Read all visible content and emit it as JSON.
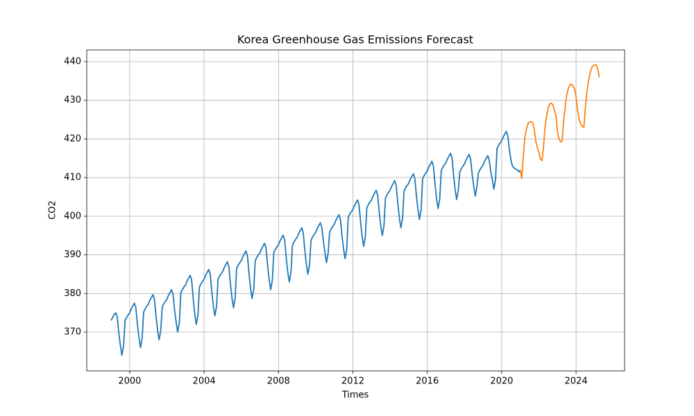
{
  "chart_data": {
    "type": "line",
    "title": "Korea Greenhouse Gas Emissions Forecast",
    "x_label": "Times",
    "y_label": "CO2",
    "xlim": [
      1997.69,
      2026.61
    ],
    "ylim": [
      359.95,
      443.05
    ],
    "xticks": [
      2000,
      2004,
      2008,
      2012,
      2016,
      2020,
      2024
    ],
    "yticks": [
      370,
      380,
      390,
      400,
      410,
      420,
      430,
      440
    ],
    "grid": true,
    "series": [
      {
        "color": "#1f77b4",
        "x": [
          1999,
          1999.08,
          1999.17,
          1999.25,
          1999.33,
          1999.42,
          1999.5,
          1999.58,
          1999.67,
          1999.75,
          1999.83,
          1999.92,
          2000,
          2000.08,
          2000.17,
          2000.25,
          2000.33,
          2000.42,
          2000.5,
          2000.58,
          2000.67,
          2000.75,
          2000.83,
          2000.92,
          2001,
          2001.08,
          2001.17,
          2001.25,
          2001.33,
          2001.42,
          2001.5,
          2001.58,
          2001.67,
          2001.75,
          2001.83,
          2001.92,
          2002,
          2002.08,
          2002.17,
          2002.25,
          2002.33,
          2002.42,
          2002.5,
          2002.58,
          2002.67,
          2002.75,
          2002.83,
          2002.92,
          2003,
          2003.08,
          2003.17,
          2003.25,
          2003.33,
          2003.42,
          2003.5,
          2003.58,
          2003.67,
          2003.75,
          2003.83,
          2003.92,
          2004,
          2004.08,
          2004.17,
          2004.25,
          2004.33,
          2004.42,
          2004.5,
          2004.58,
          2004.67,
          2004.75,
          2004.83,
          2004.92,
          2005,
          2005.08,
          2005.17,
          2005.25,
          2005.33,
          2005.42,
          2005.5,
          2005.58,
          2005.67,
          2005.75,
          2005.83,
          2005.92,
          2006,
          2006.08,
          2006.17,
          2006.25,
          2006.33,
          2006.42,
          2006.5,
          2006.58,
          2006.67,
          2006.75,
          2006.83,
          2006.92,
          2007,
          2007.08,
          2007.17,
          2007.25,
          2007.33,
          2007.42,
          2007.5,
          2007.58,
          2007.67,
          2007.75,
          2007.83,
          2007.92,
          2008,
          2008.08,
          2008.17,
          2008.25,
          2008.33,
          2008.42,
          2008.5,
          2008.58,
          2008.67,
          2008.75,
          2008.83,
          2008.92,
          2009,
          2009.08,
          2009.17,
          2009.25,
          2009.33,
          2009.42,
          2009.5,
          2009.58,
          2009.67,
          2009.75,
          2009.83,
          2009.92,
          2010,
          2010.08,
          2010.17,
          2010.25,
          2010.33,
          2010.42,
          2010.5,
          2010.58,
          2010.67,
          2010.75,
          2010.83,
          2010.92,
          2011,
          2011.08,
          2011.17,
          2011.25,
          2011.33,
          2011.42,
          2011.5,
          2011.58,
          2011.67,
          2011.75,
          2011.83,
          2011.92,
          2012,
          2012.08,
          2012.17,
          2012.25,
          2012.33,
          2012.42,
          2012.5,
          2012.58,
          2012.67,
          2012.75,
          2012.83,
          2012.92,
          2013,
          2013.08,
          2013.17,
          2013.25,
          2013.33,
          2013.42,
          2013.5,
          2013.58,
          2013.67,
          2013.75,
          2013.83,
          2013.92,
          2014,
          2014.08,
          2014.17,
          2014.25,
          2014.33,
          2014.42,
          2014.5,
          2014.58,
          2014.67,
          2014.75,
          2014.83,
          2014.92,
          2015,
          2015.08,
          2015.17,
          2015.25,
          2015.33,
          2015.42,
          2015.5,
          2015.58,
          2015.67,
          2015.75,
          2015.83,
          2015.92,
          2016,
          2016.08,
          2016.17,
          2016.25,
          2016.33,
          2016.42,
          2016.5,
          2016.58,
          2016.67,
          2016.75,
          2016.83,
          2016.92,
          2017,
          2017.08,
          2017.17,
          2017.25,
          2017.33,
          2017.42,
          2017.5,
          2017.58,
          2017.67,
          2017.75,
          2017.83,
          2017.92,
          2018,
          2018.08,
          2018.17,
          2018.25,
          2018.33,
          2018.42,
          2018.5,
          2018.58,
          2018.67,
          2018.75,
          2018.83,
          2018.92,
          2019,
          2019.08,
          2019.17,
          2019.25,
          2019.33,
          2019.42,
          2019.5,
          2019.58,
          2019.67,
          2019.75,
          2019.83,
          2019.92,
          2020,
          2020.08,
          2020.17,
          2020.25,
          2020.33,
          2020.42,
          2020.5,
          2020.58,
          2020.67,
          2020.75,
          2020.83,
          2020.92,
          2021
        ],
        "values": [
          373,
          373.8,
          374.6,
          375,
          373.8,
          369.5,
          366.5,
          364,
          366.5,
          373,
          373.8,
          374.5,
          375,
          376,
          376.8,
          377.5,
          376.3,
          371.8,
          368.5,
          366,
          368.5,
          375.2,
          376,
          376.7,
          377.2,
          378.2,
          379,
          379.7,
          378.5,
          373.9,
          370.5,
          368,
          370.5,
          376.5,
          377.3,
          378,
          378.5,
          379.5,
          380.3,
          381,
          379.8,
          375.5,
          372.5,
          370,
          372.5,
          380.2,
          381,
          381.7,
          382.2,
          383.2,
          384,
          384.7,
          383.5,
          378.4,
          374.5,
          372,
          374.5,
          381.7,
          382.5,
          383.2,
          383.7,
          384.7,
          385.5,
          386.2,
          385,
          380.2,
          376.7,
          374.2,
          376.7,
          383.7,
          384.5,
          385.2,
          385.7,
          386.7,
          387.5,
          388.2,
          387,
          382.3,
          378.8,
          376.3,
          378.8,
          386.5,
          387.3,
          388,
          388.5,
          389.5,
          390.3,
          391,
          389.8,
          384.9,
          381.2,
          378.7,
          381.2,
          388.5,
          389.3,
          390,
          390.5,
          391.5,
          392.3,
          393,
          391.8,
          387,
          383.5,
          381,
          383.5,
          390.6,
          391.4,
          392.1,
          392.6,
          393.6,
          394.4,
          395.1,
          393.9,
          389.1,
          385.5,
          383,
          385.5,
          392.5,
          393.3,
          394,
          394.5,
          395.5,
          396.3,
          397,
          395.8,
          391,
          387.5,
          385,
          387.5,
          393.8,
          394.6,
          395.3,
          395.8,
          396.8,
          397.6,
          398.3,
          397.1,
          393.2,
          390.5,
          388,
          390.5,
          395.9,
          396.7,
          397.4,
          397.9,
          398.9,
          399.7,
          400.4,
          399.2,
          394.7,
          391.5,
          389,
          391.5,
          399.7,
          400.5,
          401.2,
          401.7,
          402.7,
          403.5,
          404.2,
          403,
          398.2,
          394.7,
          392.2,
          394.7,
          402.2,
          403,
          403.7,
          404.2,
          405.2,
          406,
          406.7,
          405.5,
          400.9,
          397.5,
          395,
          397.5,
          404.7,
          405.5,
          406.2,
          406.7,
          407.7,
          408.5,
          409.2,
          408,
          403.1,
          399.5,
          397,
          399.5,
          406.5,
          407.3,
          408,
          408.5,
          409.5,
          410.3,
          411,
          409.8,
          405.1,
          401.7,
          399.2,
          401.7,
          409.7,
          410.5,
          411.2,
          411.7,
          412.7,
          413.5,
          414.2,
          413,
          408.1,
          404.5,
          402,
          404.5,
          411.8,
          412.6,
          413.3,
          413.8,
          414.8,
          415.6,
          416.3,
          415.1,
          410.3,
          406.8,
          404.3,
          406.8,
          411.5,
          412.3,
          413,
          413.5,
          414.5,
          415.3,
          416,
          414.8,
          410.6,
          407.7,
          405.2,
          407.7,
          411.2,
          412,
          412.7,
          413.2,
          414.2,
          415,
          415.7,
          414.5,
          411.4,
          409.5,
          407,
          409.5,
          417.5,
          418.3,
          419,
          419.5,
          420.5,
          421.3,
          422,
          420.8,
          417,
          414.5,
          413,
          412.5,
          412.2,
          412,
          411.5,
          412
        ]
      },
      {
        "color": "#ff7f0e",
        "x": [
          2021,
          2021.08,
          2021.17,
          2021.25,
          2021.33,
          2021.42,
          2021.5,
          2021.58,
          2021.67,
          2021.75,
          2021.83,
          2021.92,
          2022,
          2022.08,
          2022.17,
          2022.25,
          2022.33,
          2022.42,
          2022.5,
          2022.58,
          2022.67,
          2022.75,
          2022.83,
          2022.92,
          2023,
          2023.08,
          2023.17,
          2023.25,
          2023.33,
          2023.42,
          2023.5,
          2023.58,
          2023.67,
          2023.75,
          2023.83,
          2023.92,
          2024,
          2024.08,
          2024.17,
          2024.25,
          2024.33,
          2024.42,
          2024.5,
          2024.58,
          2024.67,
          2024.75,
          2024.83,
          2024.92,
          2025,
          2025.08,
          2025.17,
          2025.25
        ],
        "values": [
          412,
          409.8,
          416,
          420.5,
          422.5,
          424,
          424.4,
          424.5,
          424.2,
          422.5,
          419.5,
          417.8,
          416.5,
          414.8,
          414.4,
          418,
          423,
          426,
          428,
          429,
          429.3,
          428.8,
          427.5,
          426,
          422,
          420,
          419.2,
          419.5,
          424.5,
          428.5,
          431.5,
          433,
          434,
          434.2,
          433.8,
          433,
          431,
          427.5,
          425,
          424,
          423.3,
          423,
          428,
          432,
          435,
          437,
          438.3,
          439,
          439.1,
          439.2,
          438,
          436
        ]
      }
    ]
  }
}
